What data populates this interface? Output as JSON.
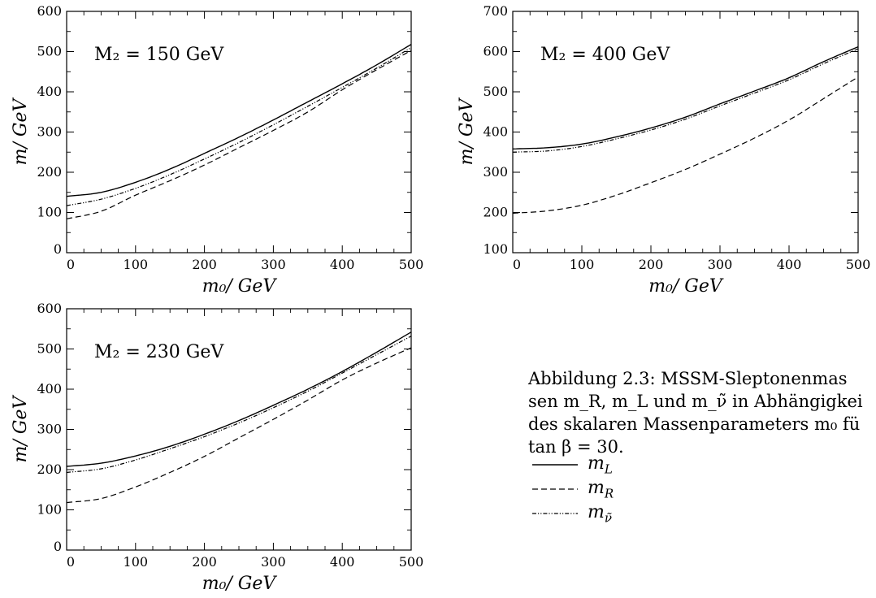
{
  "chart_data": [
    {
      "type": "line",
      "annotation": "M₂ = 150 GeV",
      "xlabel": "m₀/ GeV",
      "ylabel": "m/ GeV",
      "xlim": [
        0,
        500
      ],
      "ylim": [
        0,
        600
      ],
      "x_ticks": [
        0,
        100,
        200,
        300,
        400,
        500
      ],
      "y_ticks": [
        0,
        100,
        200,
        300,
        400,
        500,
        600
      ],
      "x": [
        0,
        50,
        100,
        150,
        200,
        250,
        300,
        350,
        400,
        450,
        500
      ],
      "series": [
        {
          "name": "m_L",
          "style": "solid",
          "values": [
            140,
            150,
            175,
            208,
            247,
            287,
            330,
            375,
            420,
            467,
            518
          ]
        },
        {
          "name": "m_R",
          "style": "dashed",
          "values": [
            84,
            103,
            143,
            179,
            218,
            261,
            304,
            350,
            405,
            455,
            503
          ]
        },
        {
          "name": "m_ν̃",
          "style": "dashdot",
          "values": [
            117,
            133,
            160,
            194,
            233,
            274,
            318,
            364,
            411,
            459,
            510
          ]
        }
      ]
    },
    {
      "type": "line",
      "annotation": "M₂ = 400 GeV",
      "xlabel": "m₀/ GeV",
      "ylabel": "m/ GeV",
      "xlim": [
        0,
        500
      ],
      "ylim": [
        100,
        700
      ],
      "x_ticks": [
        0,
        100,
        200,
        300,
        400,
        500
      ],
      "y_ticks": [
        100,
        200,
        300,
        400,
        500,
        600,
        700
      ],
      "x": [
        0,
        50,
        100,
        150,
        200,
        250,
        300,
        350,
        400,
        450,
        500
      ],
      "series": [
        {
          "name": "m_L",
          "style": "solid",
          "values": [
            358,
            361,
            370,
            388,
            410,
            437,
            470,
            502,
            535,
            575,
            612
          ]
        },
        {
          "name": "m_R",
          "style": "dashed",
          "values": [
            198,
            204,
            218,
            243,
            274,
            307,
            345,
            385,
            430,
            483,
            537
          ]
        },
        {
          "name": "m_ν̃",
          "style": "dashdot",
          "values": [
            350,
            353,
            364,
            383,
            405,
            432,
            465,
            497,
            530,
            570,
            607
          ]
        }
      ]
    },
    {
      "type": "line",
      "annotation": "M₂ = 230 GeV",
      "xlabel": "m₀/ GeV",
      "ylabel": "m/ GeV",
      "xlim": [
        0,
        500
      ],
      "ylim": [
        0,
        600
      ],
      "x_ticks": [
        0,
        100,
        200,
        300,
        400,
        500
      ],
      "y_ticks": [
        0,
        100,
        200,
        300,
        400,
        500,
        600
      ],
      "x": [
        0,
        50,
        100,
        150,
        200,
        250,
        300,
        350,
        400,
        450,
        500
      ],
      "series": [
        {
          "name": "m_L",
          "style": "solid",
          "values": [
            208,
            216,
            234,
            258,
            288,
            322,
            360,
            400,
            444,
            492,
            542
          ]
        },
        {
          "name": "m_R",
          "style": "dashed",
          "values": [
            118,
            128,
            157,
            193,
            233,
            279,
            325,
            373,
            423,
            465,
            503
          ]
        },
        {
          "name": "m_ν̃",
          "style": "dashdot",
          "values": [
            193,
            202,
            224,
            252,
            282,
            316,
            354,
            395,
            440,
            486,
            532
          ]
        }
      ]
    }
  ],
  "caption": {
    "lines": [
      "Abbildung 2.3: MSSM-Sleptonenmas",
      "sen m_R, m_L und m_ν̃ in Abhängigkei",
      "des skalaren Massenparameters m₀ fü",
      "tan β = 30."
    ]
  },
  "legend": {
    "items": [
      {
        "label": "m",
        "sub": "L",
        "style": "solid"
      },
      {
        "label": "m",
        "sub": "R",
        "style": "dashed"
      },
      {
        "label": "m",
        "sub": "ν̃",
        "style": "dashdot"
      }
    ]
  }
}
